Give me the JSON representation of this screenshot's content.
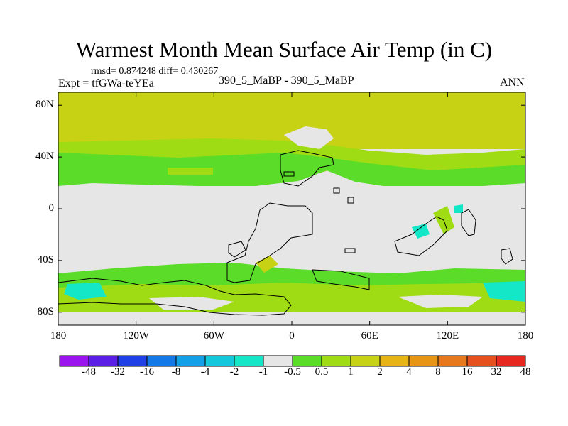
{
  "header": {
    "title": "Warmest Month Mean Surface Air Temp (in C)",
    "stats": "rmsd= 0.874248 diff= 0.430267",
    "experiment": "Expt = tfGWa-teYEa",
    "subtitle": "390_5_MaBP - 390_5_MaBP",
    "season": "ANN"
  },
  "map": {
    "lat_ticks": [
      {
        "label": "80N",
        "value": 80
      },
      {
        "label": "40N",
        "value": 40
      },
      {
        "label": "0",
        "value": 0
      },
      {
        "label": "40S",
        "value": -40
      },
      {
        "label": "80S",
        "value": -80
      }
    ],
    "lon_ticks": [
      {
        "label": "180",
        "value": -180
      },
      {
        "label": "120W",
        "value": -120
      },
      {
        "label": "60W",
        "value": -60
      },
      {
        "label": "0",
        "value": 0
      },
      {
        "label": "60E",
        "value": 60
      },
      {
        "label": "120E",
        "value": 120
      },
      {
        "label": "180",
        "value": 180
      }
    ],
    "lat_range": [
      -90,
      90
    ],
    "lon_range": [
      -180,
      180
    ]
  },
  "colorbar": {
    "colors": [
      "#9a14f0",
      "#5a1ee6",
      "#1e40e6",
      "#1478e6",
      "#14a0e6",
      "#14c8dc",
      "#14e6c8",
      "#e6e6e6",
      "#5adc28",
      "#a0dc14",
      "#c8d214",
      "#e6b414",
      "#e69614",
      "#e6781e",
      "#e6501e",
      "#e6281e"
    ],
    "labels": [
      "-48",
      "-32",
      "-16",
      "-8",
      "-4",
      "-2",
      "-1",
      "-0.5",
      "0.5",
      "1",
      "2",
      "4",
      "8",
      "16",
      "32",
      "48"
    ]
  }
}
